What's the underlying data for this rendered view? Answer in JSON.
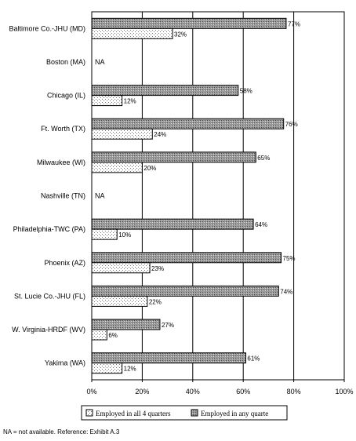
{
  "chart_data": {
    "type": "bar",
    "orientation": "horizontal",
    "categories": [
      "Baltimore Co.-JHU (MD)",
      "Boston (MA)",
      "Chicago (IL)",
      "Ft. Worth (TX)",
      "Milwaukee (WI)",
      "Nashville (TN)",
      "Philadelphia-TWC (PA)",
      "Phoenix (AZ)",
      "St. Lucie Co.-JHU (FL)",
      "W. Virginia-HRDF (WV)",
      "Yakima (WA)"
    ],
    "series": [
      {
        "name": "Employed in any quarte",
        "values": [
          77,
          null,
          58,
          76,
          65,
          null,
          64,
          75,
          74,
          27,
          61
        ],
        "labels": [
          "77%",
          "",
          "58%",
          "76%",
          "65%",
          "",
          "64%",
          "75%",
          "74%",
          "27%",
          "61%"
        ],
        "pattern": "dense-gray"
      },
      {
        "name": "Employed in all 4 quarters",
        "values": [
          32,
          null,
          12,
          24,
          20,
          null,
          10,
          23,
          22,
          6,
          12
        ],
        "labels": [
          "32%",
          "",
          "12%",
          "24%",
          "20%",
          "",
          "10%",
          "23%",
          "22%",
          "6%",
          "12%"
        ],
        "pattern": "light-dots"
      }
    ],
    "na_label": "NA",
    "na_categories": [
      1,
      5
    ],
    "xlim": [
      0,
      100
    ],
    "xticks": [
      "0%",
      "20%",
      "40%",
      "60%",
      "80%",
      "100%"
    ],
    "grid": true,
    "legend": {
      "position": "bottom",
      "entries": [
        "Employed in all 4 quarters",
        "Employed in any quarte"
      ]
    }
  },
  "footnote": "NA = not available.  Reference: Exhibit A.3"
}
